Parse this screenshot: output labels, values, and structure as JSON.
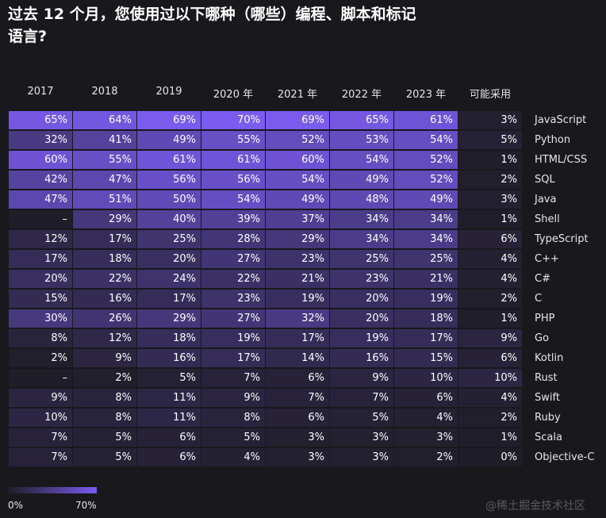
{
  "title": "过去 12 个月，您使用过以下哪种（哪些）编程、脚本和标记语言?",
  "watermark": "@稀土掘金技术社区",
  "colors": {
    "background": "#19181c",
    "scale_min": "#1f1d27",
    "scale_max": "#7a5cf0"
  },
  "legend": {
    "min_label": "0%",
    "max_label": "70%"
  },
  "chart_data": {
    "type": "heatmap",
    "columns": [
      "2017",
      "2018",
      "2019",
      "2020 年",
      "2021 年",
      "2022 年",
      "2023 年",
      "可能采用"
    ],
    "rows": [
      {
        "name": "JavaScript",
        "values": [
          "65%",
          "64%",
          "69%",
          "70%",
          "69%",
          "65%",
          "61%",
          "3%"
        ]
      },
      {
        "name": "Python",
        "values": [
          "32%",
          "41%",
          "49%",
          "55%",
          "52%",
          "53%",
          "54%",
          "5%"
        ]
      },
      {
        "name": "HTML/CSS",
        "values": [
          "60%",
          "55%",
          "61%",
          "61%",
          "60%",
          "54%",
          "52%",
          "1%"
        ]
      },
      {
        "name": "SQL",
        "values": [
          "42%",
          "47%",
          "56%",
          "56%",
          "54%",
          "49%",
          "52%",
          "2%"
        ]
      },
      {
        "name": "Java",
        "values": [
          "47%",
          "51%",
          "50%",
          "54%",
          "49%",
          "48%",
          "49%",
          "3%"
        ]
      },
      {
        "name": "Shell",
        "values": [
          "–",
          "29%",
          "40%",
          "39%",
          "37%",
          "34%",
          "34%",
          "1%"
        ]
      },
      {
        "name": "TypeScript",
        "values": [
          "12%",
          "17%",
          "25%",
          "28%",
          "29%",
          "34%",
          "34%",
          "6%"
        ]
      },
      {
        "name": "C++",
        "values": [
          "17%",
          "18%",
          "20%",
          "27%",
          "23%",
          "25%",
          "25%",
          "4%"
        ]
      },
      {
        "name": "C#",
        "values": [
          "20%",
          "22%",
          "24%",
          "22%",
          "21%",
          "23%",
          "21%",
          "4%"
        ]
      },
      {
        "name": "C",
        "values": [
          "15%",
          "16%",
          "17%",
          "23%",
          "19%",
          "20%",
          "19%",
          "2%"
        ]
      },
      {
        "name": "PHP",
        "values": [
          "30%",
          "26%",
          "29%",
          "27%",
          "32%",
          "20%",
          "18%",
          "1%"
        ]
      },
      {
        "name": "Go",
        "values": [
          "8%",
          "12%",
          "18%",
          "19%",
          "17%",
          "19%",
          "17%",
          "9%"
        ]
      },
      {
        "name": "Kotlin",
        "values": [
          "2%",
          "9%",
          "16%",
          "17%",
          "14%",
          "16%",
          "15%",
          "6%"
        ]
      },
      {
        "name": "Rust",
        "values": [
          "–",
          "2%",
          "5%",
          "7%",
          "6%",
          "9%",
          "10%",
          "10%"
        ]
      },
      {
        "name": "Swift",
        "values": [
          "9%",
          "8%",
          "11%",
          "9%",
          "7%",
          "7%",
          "6%",
          "4%"
        ]
      },
      {
        "name": "Ruby",
        "values": [
          "10%",
          "8%",
          "11%",
          "8%",
          "6%",
          "5%",
          "4%",
          "2%"
        ]
      },
      {
        "name": "Scala",
        "values": [
          "7%",
          "5%",
          "6%",
          "5%",
          "3%",
          "3%",
          "3%",
          "1%"
        ]
      },
      {
        "name": "Objective-C",
        "values": [
          "7%",
          "5%",
          "6%",
          "4%",
          "3%",
          "3%",
          "2%",
          "0%"
        ]
      }
    ],
    "scale": [
      0,
      70
    ]
  }
}
